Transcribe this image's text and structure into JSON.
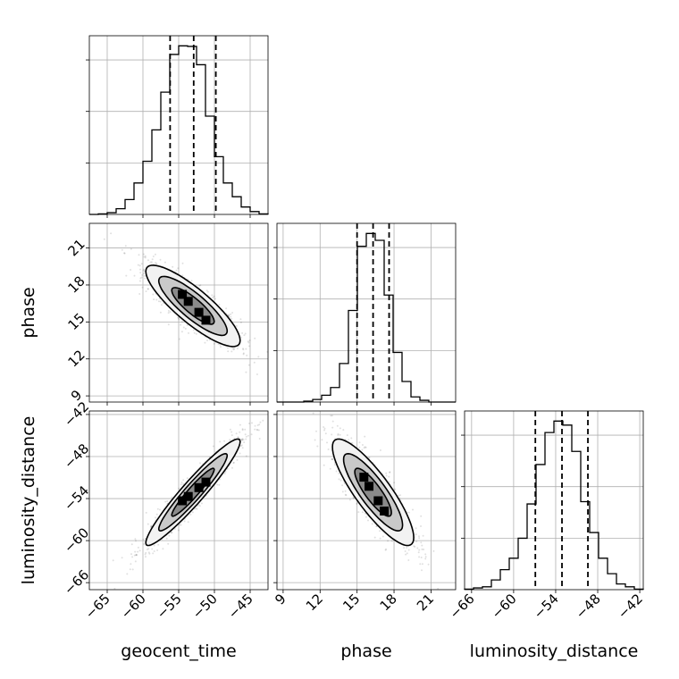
{
  "chart_data": {
    "type": "corner",
    "parameters": [
      "geocent_time",
      "phase",
      "luminosity_distance"
    ],
    "grid": true,
    "histograms": [
      {
        "parameter": "geocent_time",
        "xlim": [
          -67.5,
          -42.5
        ],
        "xticks": [
          -65,
          -60,
          -55,
          -50,
          -45
        ],
        "bin_edges": [
          -67.5,
          -66.25,
          -65,
          -63.75,
          -62.5,
          -61.25,
          -60,
          -58.75,
          -57.5,
          -56.25,
          -55,
          -53.75,
          -52.5,
          -51.25,
          -50,
          -48.75,
          -47.5,
          -46.25,
          -45,
          -43.75,
          -42.5
        ],
        "counts": [
          0,
          1,
          3,
          10,
          26,
          55,
          93,
          148,
          214,
          280,
          295,
          294,
          262,
          172,
          101,
          55,
          31,
          13,
          5,
          1
        ],
        "quantiles": [
          -56.2,
          -52.9,
          -49.8
        ]
      },
      {
        "parameter": "phase",
        "xlim": [
          8.5,
          23.0
        ],
        "xticks": [
          9,
          12,
          15,
          18,
          21
        ],
        "bin_edges": [
          8.5,
          9.225,
          9.95,
          10.675,
          11.4,
          12.125,
          12.85,
          13.575,
          14.3,
          15.025,
          15.75,
          16.475,
          17.2,
          17.925,
          18.65,
          19.375,
          20.1,
          20.825,
          21.55,
          22.275,
          23.0
        ],
        "counts": [
          0,
          0,
          0,
          1,
          3,
          8,
          17,
          45,
          107,
          182,
          197,
          189,
          125,
          58,
          24,
          6,
          2,
          0,
          0,
          0
        ],
        "quantiles": [
          15.0,
          16.3,
          17.6
        ]
      },
      {
        "parameter": "luminosity_distance",
        "xlim": [
          -67.0,
          -41.5
        ],
        "xticks": [
          -66,
          -60,
          -54,
          -48,
          -42
        ],
        "bin_edges": [
          -67.0,
          -65.725,
          -64.45,
          -63.175,
          -61.9,
          -60.625,
          -59.35,
          -58.075,
          -56.8,
          -55.525,
          -54.25,
          -52.975,
          -51.7,
          -50.425,
          -49.15,
          -47.875,
          -46.6,
          -45.325,
          -44.05,
          -42.775,
          -41.5
        ],
        "counts": [
          1,
          3,
          5,
          17,
          35,
          55,
          90,
          150,
          219,
          275,
          295,
          288,
          242,
          154,
          100,
          55,
          28,
          10,
          5,
          1
        ],
        "quantiles": [
          -56.9,
          -53.1,
          -49.4
        ]
      }
    ],
    "joint_panels": [
      {
        "x": "geocent_time",
        "y": "phase",
        "xlim": [
          -67.5,
          -42.5
        ],
        "ylim": [
          8.5,
          23.0
        ],
        "x_mean": -53.0,
        "y_mean": 16.3,
        "x_sd": 3.3,
        "y_sd": 1.65,
        "correlation": -0.85
      },
      {
        "x": "geocent_time",
        "y": "luminosity_distance",
        "xlim": [
          -67.5,
          -42.5
        ],
        "ylim": [
          -67.0,
          -41.5
        ],
        "x_mean": -53.0,
        "y_mean": -53.1,
        "x_sd": 3.3,
        "y_sd": 3.8,
        "correlation": 0.95
      },
      {
        "x": "phase",
        "y": "luminosity_distance",
        "xlim": [
          8.5,
          23.0
        ],
        "ylim": [
          -67.0,
          -41.5
        ],
        "x_mean": 16.3,
        "y_mean": -53.1,
        "x_sd": 1.65,
        "y_sd": 3.8,
        "correlation": -0.85
      }
    ],
    "yticks": {
      "phase": [
        9,
        12,
        15,
        18,
        21
      ],
      "luminosity_distance": [
        -66,
        -60,
        -54,
        -48,
        -42
      ]
    }
  },
  "labels": {
    "x": [
      "geocent_time",
      "phase",
      "luminosity_distance"
    ],
    "y": [
      "phase",
      "luminosity_distance"
    ]
  }
}
